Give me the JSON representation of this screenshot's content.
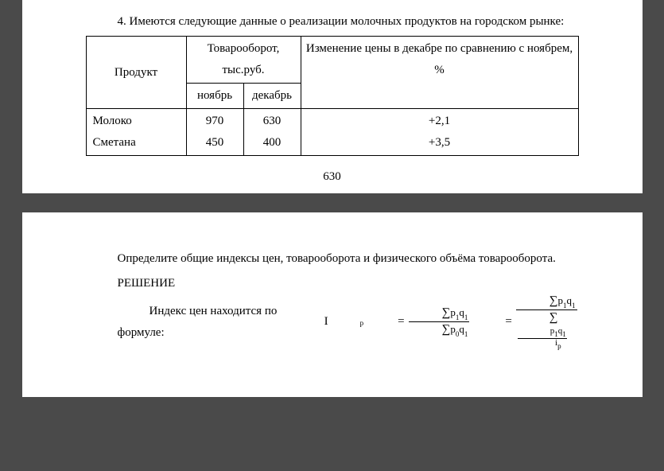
{
  "intro_text": "4. Имеются следующие данные о реализации молочных продуктов на городском рынке:",
  "table": {
    "header_product": "Продукт",
    "header_turnover": "Товарооборот, тыс.руб.",
    "header_change": "Изменение цены в декабре по сравнению с ноябрем, %",
    "header_nov": "ноябрь",
    "header_dec": "декабрь",
    "rows": [
      {
        "product": "Молоко",
        "nov": "970",
        "dec": "630",
        "change": "+2,1"
      },
      {
        "product": "Сметана",
        "nov": "450",
        "dec": "400",
        "change": "+3,5"
      }
    ]
  },
  "page_number": "630",
  "task_text": "Определите общие индексы цен, товарооборота и физического объёма товарооборота.",
  "solution_label": "РЕШЕНИЕ",
  "formula_intro": "Индекс цен находится по формуле: ",
  "formula": {
    "lhs_symbol": "I",
    "lhs_sub": "p",
    "sigma": "∑",
    "p1q1": "p₁q₁",
    "p0q1": "p₀q₁",
    "p1q1_plain_p": "p",
    "p1q1_plain_q": "q",
    "sub1": "1",
    "sub0": "0",
    "i_sym": "i",
    "i_sub": "p",
    "equals": "="
  },
  "colors": {
    "page_bg": "#ffffff",
    "body_bg": "#4a4a4a",
    "text": "#000000",
    "border": "#000000"
  }
}
